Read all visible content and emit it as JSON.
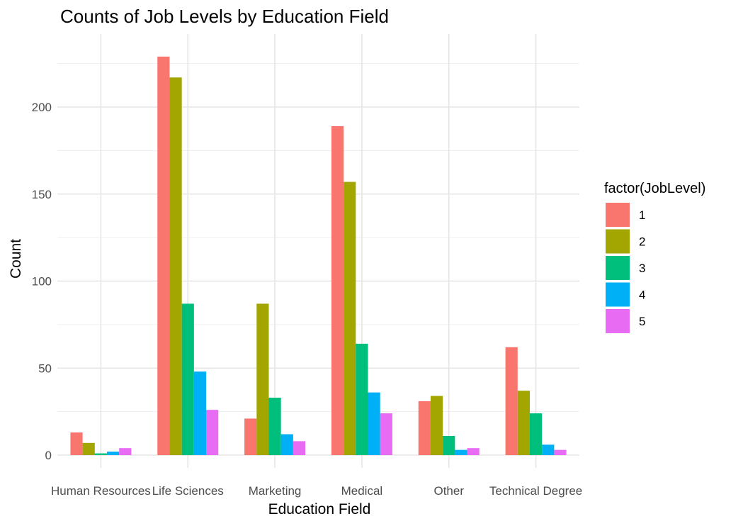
{
  "chart_data": {
    "type": "bar",
    "title": "Counts of Job Levels by Education Field",
    "xlabel": "Education Field",
    "ylabel": "Count",
    "categories": [
      "Human Resources",
      "Life Sciences",
      "Marketing",
      "Medical",
      "Other",
      "Technical Degree"
    ],
    "yticks": [
      0,
      50,
      100,
      150,
      200
    ],
    "ylim": [
      0,
      235
    ],
    "grid": true,
    "legend": {
      "title": "factor(JobLevel)",
      "position": "right"
    },
    "series": [
      {
        "name": "1",
        "color": "#F8766D",
        "values": [
          13,
          229,
          21,
          189,
          31,
          62
        ]
      },
      {
        "name": "2",
        "color": "#A3A500",
        "values": [
          7,
          217,
          87,
          157,
          34,
          37
        ]
      },
      {
        "name": "3",
        "color": "#00BF7D",
        "values": [
          1,
          87,
          33,
          64,
          11,
          24
        ]
      },
      {
        "name": "4",
        "color": "#00B0F6",
        "values": [
          2,
          48,
          12,
          36,
          3,
          6
        ]
      },
      {
        "name": "5",
        "color": "#E76BF3",
        "values": [
          4,
          26,
          8,
          24,
          4,
          3
        ]
      }
    ]
  }
}
